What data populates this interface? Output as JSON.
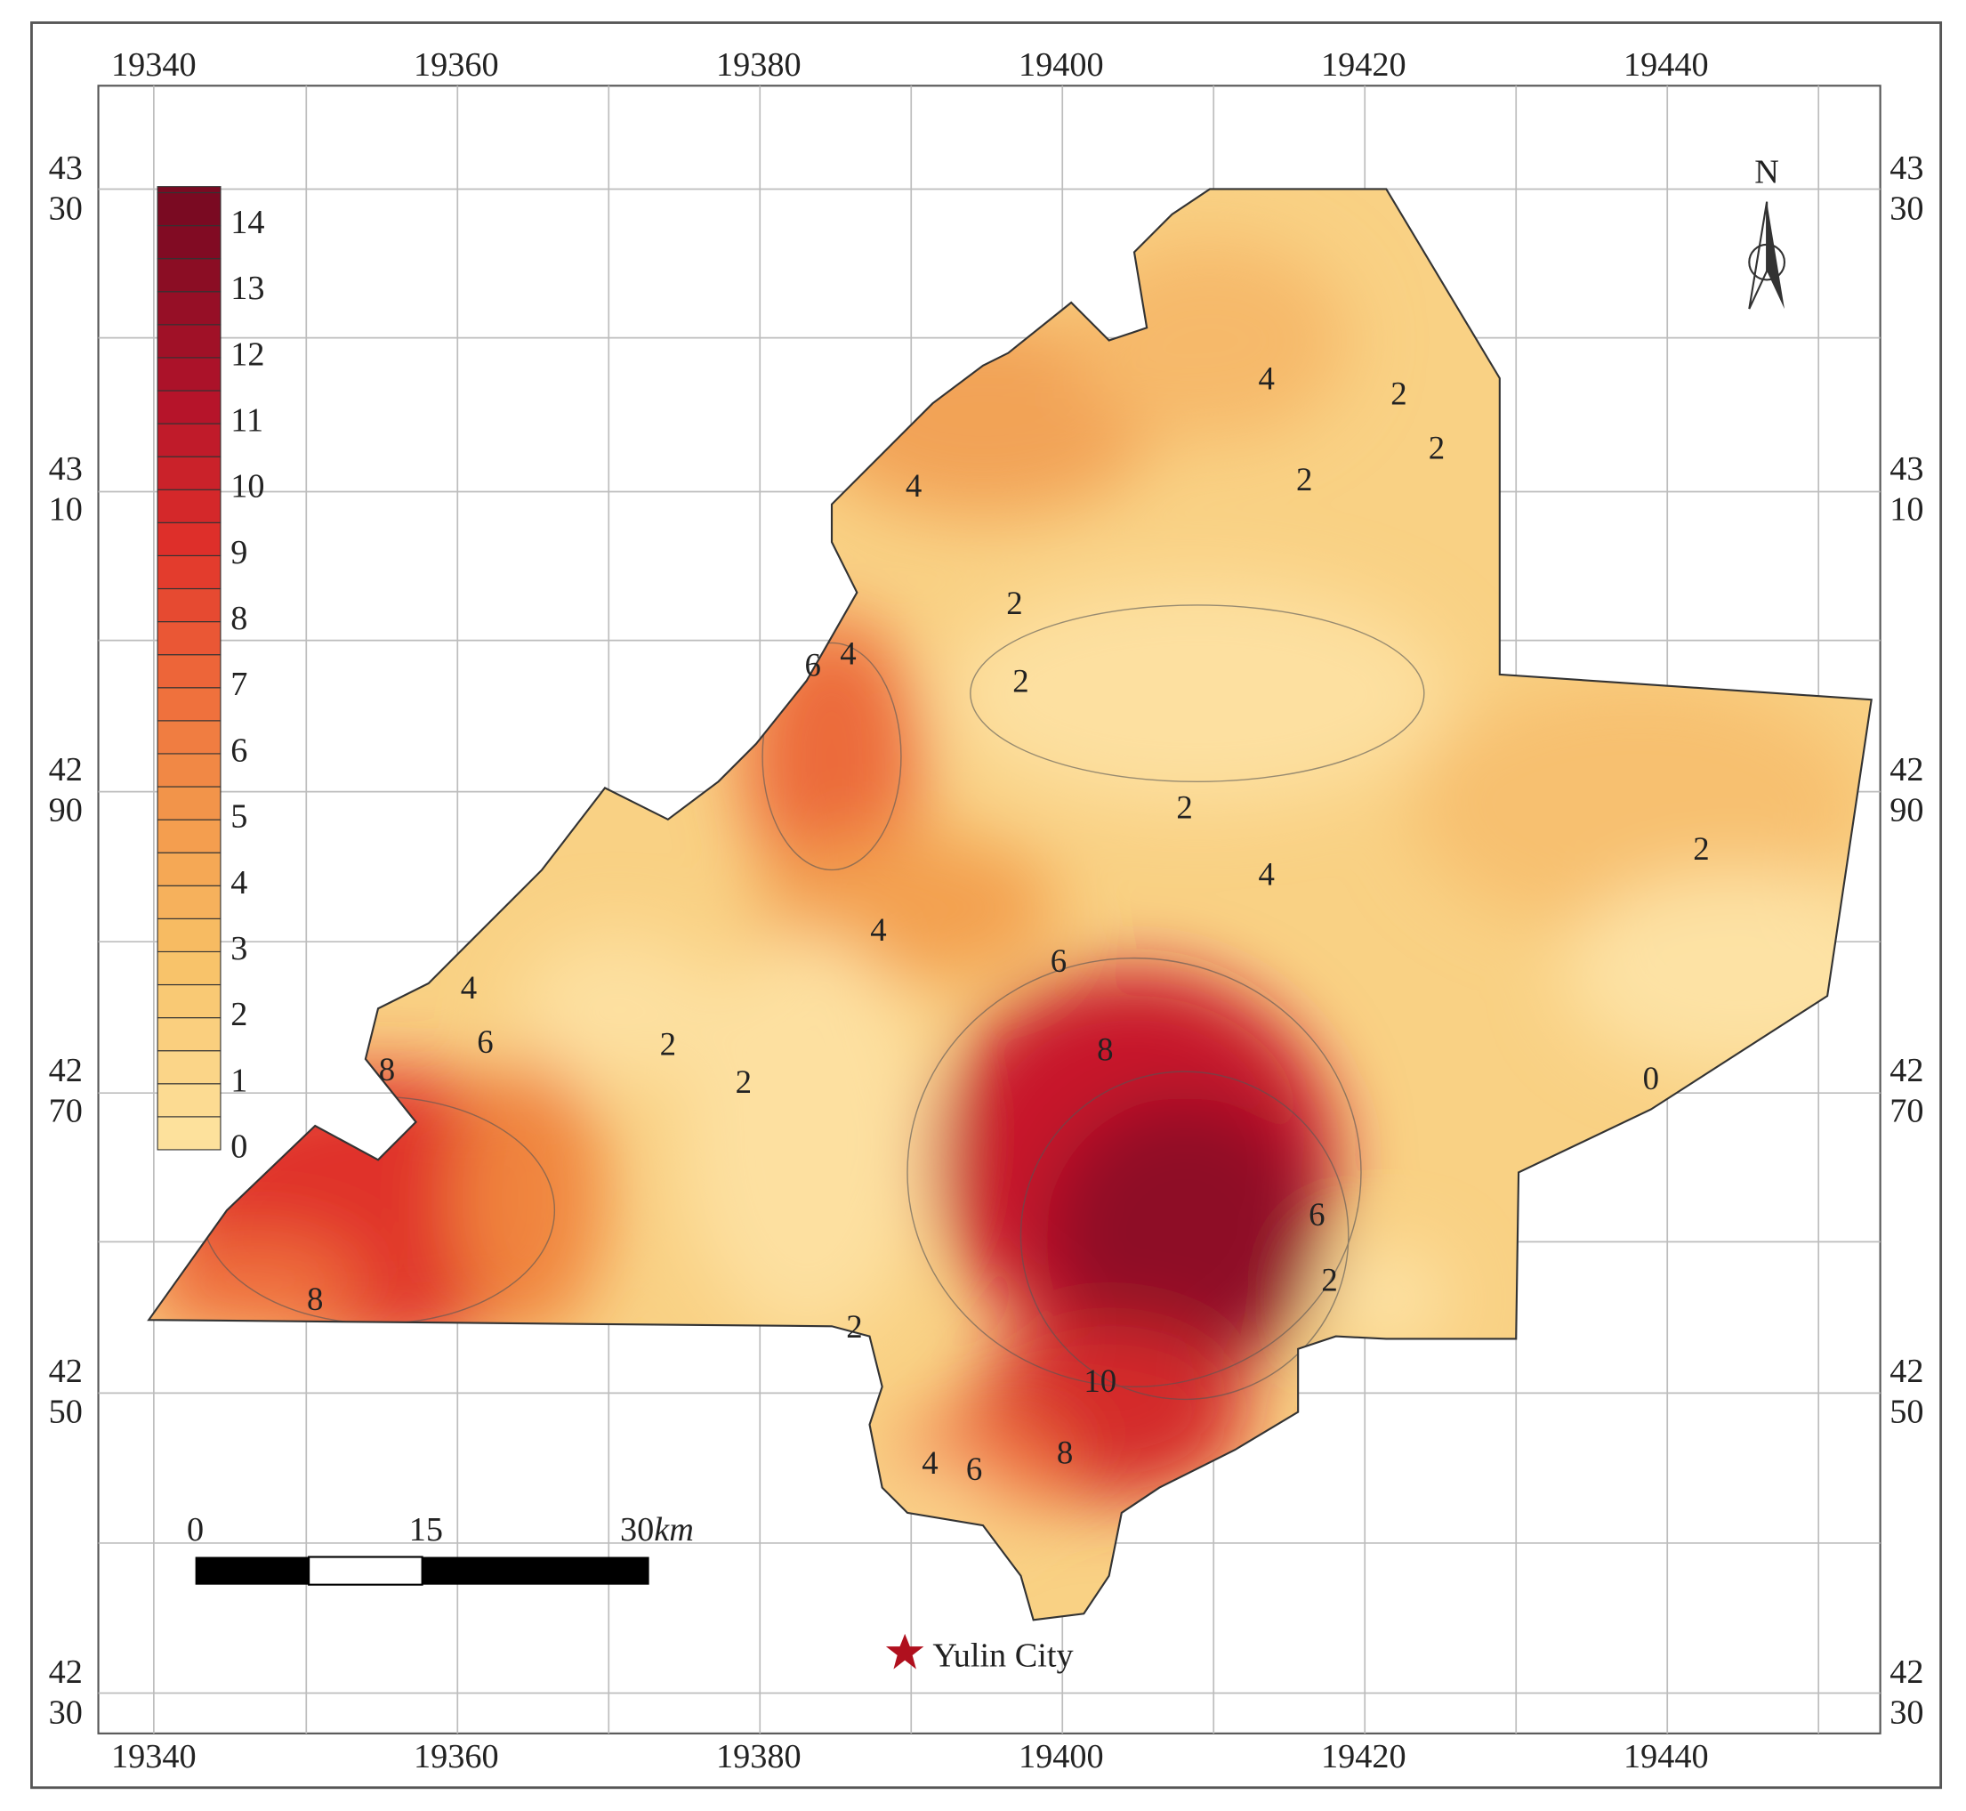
{
  "map": {
    "x_labels": [
      "19340",
      "19360",
      "19380",
      "19400",
      "19420",
      "19440"
    ],
    "y_labels": [
      [
        "43",
        "30"
      ],
      [
        "43",
        "10"
      ],
      [
        "42",
        "90"
      ],
      [
        "42",
        "70"
      ],
      [
        "42",
        "50"
      ],
      [
        "42",
        "30"
      ]
    ],
    "legend": {
      "levels": [
        14,
        13,
        12,
        11,
        10,
        9,
        8,
        7,
        6,
        5,
        4,
        3,
        2,
        1,
        0
      ]
    },
    "contour_labels": [
      4,
      2,
      2,
      2,
      4,
      2,
      2,
      4,
      6,
      2,
      2,
      4,
      4,
      6,
      4,
      6,
      2,
      2,
      8,
      8,
      0,
      6,
      2,
      8,
      2,
      10,
      8,
      6,
      4
    ],
    "scale_bar": {
      "labels": [
        "0",
        "15",
        "30"
      ],
      "unit": "km"
    },
    "north": "N",
    "place": "Yulin City"
  }
}
